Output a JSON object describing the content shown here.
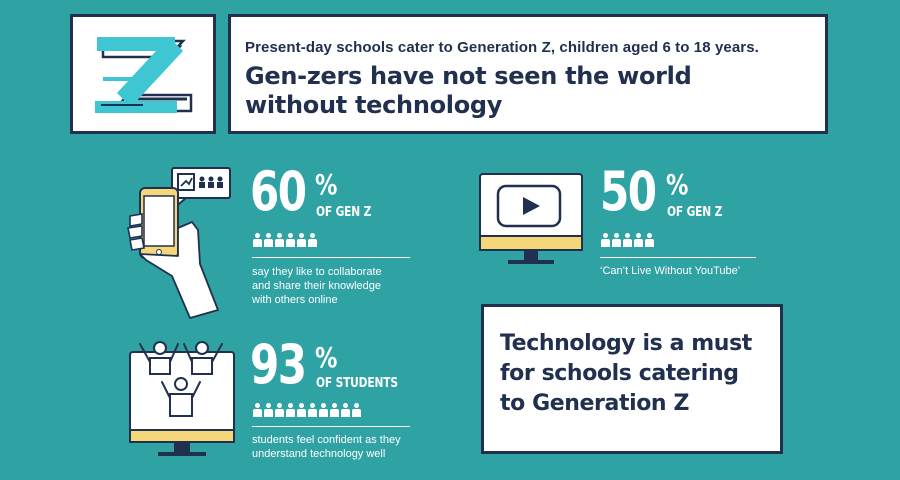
{
  "header": {
    "subtitle": "Present-day schools cater to Generation Z, children aged 6 to 18 years.",
    "title_line1": "Gen-zers have not seen the world",
    "title_line2": "without technology"
  },
  "logo": {
    "letter": "Z"
  },
  "stats": [
    {
      "value": "60",
      "percent_sign": "%",
      "group": "OF GEN Z",
      "description_lines": [
        "say they like to collaborate",
        "and share their knowledge",
        "with others online"
      ],
      "icon": "smartphone-share-icon",
      "people_shown": 6
    },
    {
      "value": "50",
      "percent_sign": "%",
      "group": "OF GEN Z",
      "description_lines": [
        "‘Can’t Live Without YouTube’"
      ],
      "icon": "monitor-video-icon",
      "people_shown": 5
    },
    {
      "value": "93",
      "percent_sign": "%",
      "group": "OF STUDENTS",
      "description_lines": [
        "students feel confident as they",
        "understand technology well"
      ],
      "icon": "monitor-students-icon",
      "people_shown": 10
    }
  ],
  "conclusion": {
    "text": "Technology is a must\nfor schools catering\nto Generation Z"
  },
  "colors": {
    "background": "#2fa2a4",
    "navy": "#21304f",
    "cyan": "#3fc6d3",
    "yellow": "#f5d77a",
    "white": "#ffffff"
  }
}
